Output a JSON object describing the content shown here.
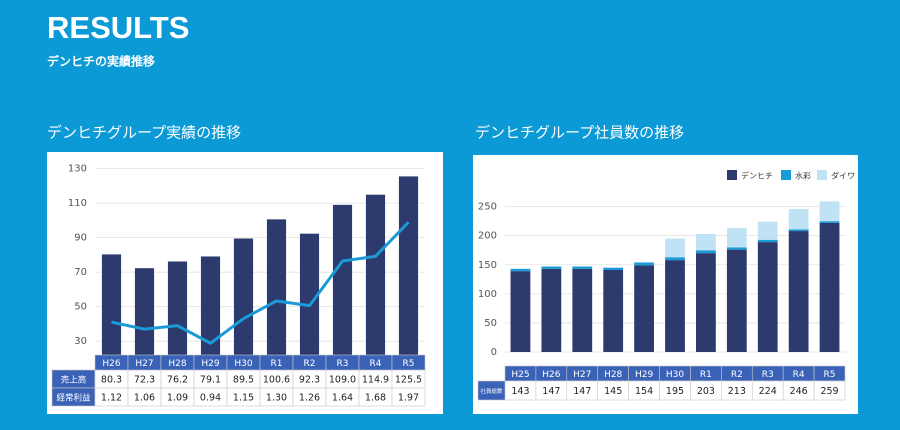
{
  "header": {
    "title": "RESULTS",
    "subtitle": "デンヒチの実績推移"
  },
  "chart_data": [
    {
      "type": "bar_line",
      "title": "デンヒチグループ実績の推移",
      "categories": [
        "H26",
        "H27",
        "H28",
        "H29",
        "H30",
        "R1",
        "R2",
        "R3",
        "R4",
        "R5"
      ],
      "series": [
        {
          "name": "売上高",
          "type": "bar",
          "color": "#2c3a6e",
          "values": [
            80.3,
            72.3,
            76.2,
            79.1,
            89.5,
            100.6,
            92.3,
            109.0,
            114.9,
            125.5
          ],
          "value_labels": [
            "80.3",
            "72.3",
            "76.2",
            "79.1",
            "89.5",
            "100.6",
            "92.3",
            "109.0",
            "114.9",
            "125.5"
          ]
        },
        {
          "name": "経常利益",
          "type": "line",
          "axis": "y2",
          "color": "#1a9ad6",
          "values": [
            1.12,
            1.06,
            1.09,
            0.94,
            1.15,
            1.3,
            1.26,
            1.64,
            1.68,
            1.97
          ],
          "value_labels": [
            "1.12",
            "1.06",
            "1.09",
            "0.94",
            "1.15",
            "1.30",
            "1.26",
            "1.64",
            "1.68",
            "1.97"
          ]
        }
      ],
      "ylim": [
        22,
        135
      ],
      "yticks": [
        30,
        50,
        70,
        90,
        110,
        130
      ],
      "y2lim": [
        0.84,
        2.5
      ],
      "grid": true
    },
    {
      "type": "stacked_bar",
      "title": "デンヒチグループ社員数の推移",
      "categories": [
        "H25",
        "H26",
        "H27",
        "H28",
        "H29",
        "H30",
        "R1",
        "R2",
        "R3",
        "R4",
        "R5"
      ],
      "series": [
        {
          "name": "デンヒチ",
          "color": "#2c3a6e",
          "values": [
            139,
            143,
            143,
            141,
            149,
            158,
            170,
            176,
            189,
            208,
            222
          ]
        },
        {
          "name": "水彩",
          "color": "#1a9ad6",
          "values": [
            4,
            4,
            4,
            4,
            5,
            5,
            5,
            4,
            4,
            3,
            3
          ]
        },
        {
          "name": "ダイワ",
          "color": "#bfe3f5",
          "values": [
            0,
            0,
            0,
            0,
            0,
            32,
            28,
            33,
            31,
            35,
            34
          ]
        }
      ],
      "totals_label": "社員総数",
      "totals": [
        143,
        147,
        147,
        145,
        154,
        195,
        203,
        213,
        224,
        246,
        259
      ],
      "ylim": [
        0,
        270
      ],
      "yticks": [
        0,
        50,
        100,
        150,
        200,
        250
      ],
      "grid": true,
      "legend": "top-right"
    }
  ]
}
